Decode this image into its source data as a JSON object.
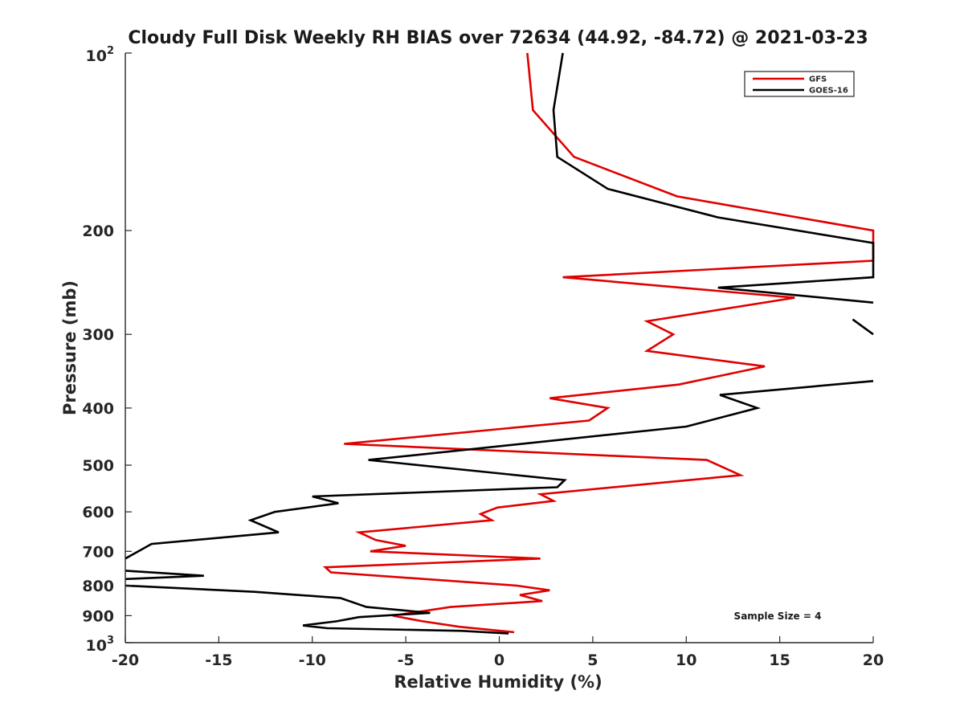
{
  "chart_data": {
    "type": "line",
    "title": "Cloudy Full Disk Weekly RH BIAS over 72634 (44.92, -84.72) @ 2021-03-23",
    "xlabel": "Relative Humidity (%)",
    "ylabel": "Pressure (mb)",
    "xlim": [
      -20,
      20
    ],
    "ylim": [
      100,
      1000
    ],
    "y_scale": "log",
    "y_reversed": true,
    "x_ticks": [
      "-20",
      "-15",
      "-10",
      "-5",
      "0",
      "5",
      "10",
      "15",
      "20"
    ],
    "y_ticks": [
      {
        "value": 200,
        "label": "200"
      },
      {
        "value": 300,
        "label": "300"
      },
      {
        "value": 400,
        "label": "400"
      },
      {
        "value": 500,
        "label": "500"
      },
      {
        "value": 600,
        "label": "600"
      },
      {
        "value": 700,
        "label": "700"
      },
      {
        "value": 800,
        "label": "800"
      },
      {
        "value": 900,
        "label": "900"
      }
    ],
    "y_edge_labels": {
      "top_base": "10",
      "top_exp": "2",
      "bottom_base": "10",
      "bottom_exp": "3"
    },
    "grid": false,
    "legend_position": "top-right",
    "annotation": "Sample Size = 4",
    "series": [
      {
        "name": "GFS",
        "color": "#e00000",
        "points": [
          [
            1.5,
            100
          ],
          [
            1.8,
            125
          ],
          [
            4.0,
            150
          ],
          [
            9.5,
            175
          ],
          [
            20,
            200
          ],
          [
            20,
            225
          ],
          [
            3.4,
            240
          ],
          [
            15.8,
            260
          ],
          [
            7.9,
            285
          ],
          [
            9.3,
            300
          ],
          [
            7.9,
            320
          ],
          [
            14.2,
            340
          ],
          [
            9.6,
            365
          ],
          [
            2.7,
            385
          ],
          [
            5.8,
            400
          ],
          [
            4.8,
            420
          ],
          [
            -8.3,
            460
          ],
          [
            11.1,
            490
          ],
          [
            12.9,
            520
          ],
          [
            2.2,
            560
          ],
          [
            2.9,
            575
          ],
          [
            -0.1,
            590
          ],
          [
            -1.0,
            605
          ],
          [
            -0.4,
            620
          ],
          [
            -7.5,
            650
          ],
          [
            -6.6,
            670
          ],
          [
            -5.0,
            685
          ],
          [
            -6.9,
            700
          ],
          [
            2.2,
            720
          ],
          [
            -9.3,
            745
          ],
          [
            -9.0,
            760
          ],
          [
            0.9,
            800
          ],
          [
            2.7,
            815
          ],
          [
            1.1,
            830
          ],
          [
            2.3,
            850
          ],
          [
            -2.6,
            870
          ],
          [
            -5.7,
            900
          ],
          [
            -4.1,
            920
          ],
          [
            -2.1,
            940
          ],
          [
            0.8,
            960
          ]
        ]
      },
      {
        "name": "GOES-16",
        "color": "#000000",
        "points": [
          [
            3.4,
            100
          ],
          [
            2.9,
            125
          ],
          [
            3.1,
            150
          ],
          [
            5.8,
            170
          ],
          [
            11.7,
            190
          ],
          [
            20,
            210
          ],
          [
            20,
            240
          ],
          [
            11.7,
            250
          ],
          [
            20,
            265
          ],
          [
            null,
            280
          ],
          [
            18.9,
            283
          ],
          [
            20,
            300
          ],
          [
            null,
            330
          ],
          [
            20,
            360
          ],
          [
            11.8,
            380
          ],
          [
            13.8,
            400
          ],
          [
            10.0,
            430
          ],
          [
            -7.0,
            490
          ],
          [
            3.5,
            530
          ],
          [
            3.1,
            545
          ],
          [
            -10.0,
            565
          ],
          [
            -8.6,
            580
          ],
          [
            -12.0,
            600
          ],
          [
            -13.3,
            620
          ],
          [
            -11.8,
            650
          ],
          [
            -18.6,
            680
          ],
          [
            -19.3,
            700
          ],
          [
            -20,
            720
          ],
          [
            null,
            730
          ],
          [
            -20,
            755
          ],
          [
            -15.8,
            770
          ],
          [
            -20,
            780
          ],
          [
            null,
            790
          ],
          [
            -20,
            800
          ],
          [
            -13.1,
            820
          ],
          [
            -8.5,
            840
          ],
          [
            -7.1,
            870
          ],
          [
            -3.7,
            890
          ],
          [
            -7.5,
            905
          ],
          [
            -8.7,
            920
          ],
          [
            -10.5,
            935
          ],
          [
            -9.2,
            945
          ],
          [
            -2.0,
            955
          ],
          [
            0.5,
            965
          ]
        ]
      }
    ]
  }
}
